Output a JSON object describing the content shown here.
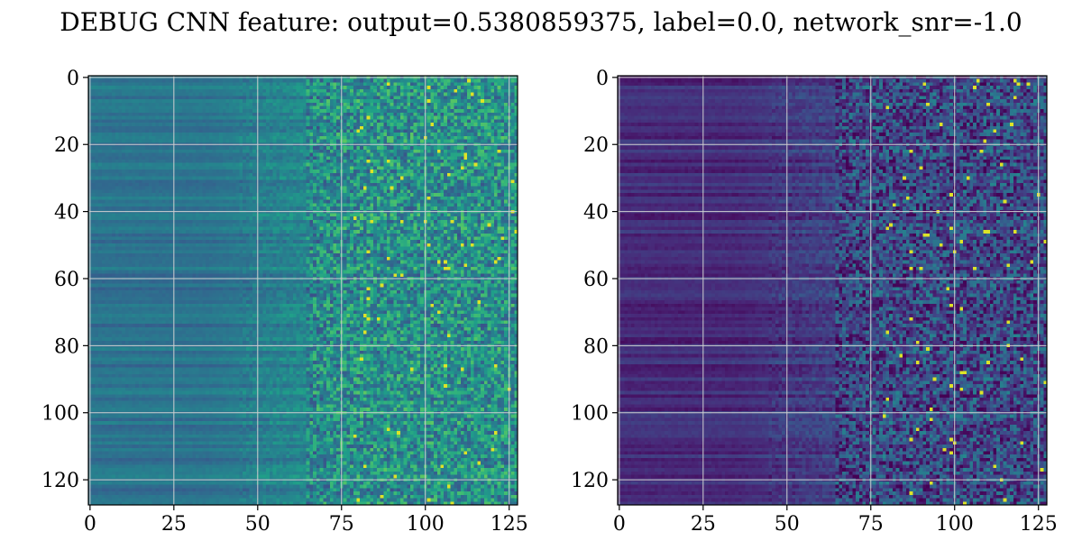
{
  "chart_data": {
    "type": "heatmap",
    "title": "DEBUG CNN feature: output=0.5380859375, label=0.0, network_snr=-1.0",
    "colormap": "viridis",
    "grid": true,
    "panels": [
      {
        "name": "",
        "shape": [
          128,
          128
        ],
        "xlim": [
          0,
          127
        ],
        "ylim": [
          127,
          0
        ],
        "xticks": [
          0,
          25,
          50,
          75,
          100,
          125
        ],
        "yticks": [
          0,
          20,
          40,
          60,
          80,
          100,
          120
        ],
        "brightness_by_column": {
          "low_columns_mean": 0.38,
          "high_columns_mean": 0.5,
          "noise_start_col": 65
        }
      },
      {
        "name": "",
        "shape": [
          128,
          128
        ],
        "xlim": [
          0,
          127
        ],
        "ylim": [
          127,
          0
        ],
        "xticks": [
          0,
          25,
          50,
          75,
          100,
          125
        ],
        "yticks": [
          0,
          20,
          40,
          60,
          80,
          100,
          120
        ],
        "brightness_by_column": {
          "low_columns_mean": 0.12,
          "high_columns_mean": 0.22,
          "noise_start_col": 65
        }
      }
    ]
  }
}
